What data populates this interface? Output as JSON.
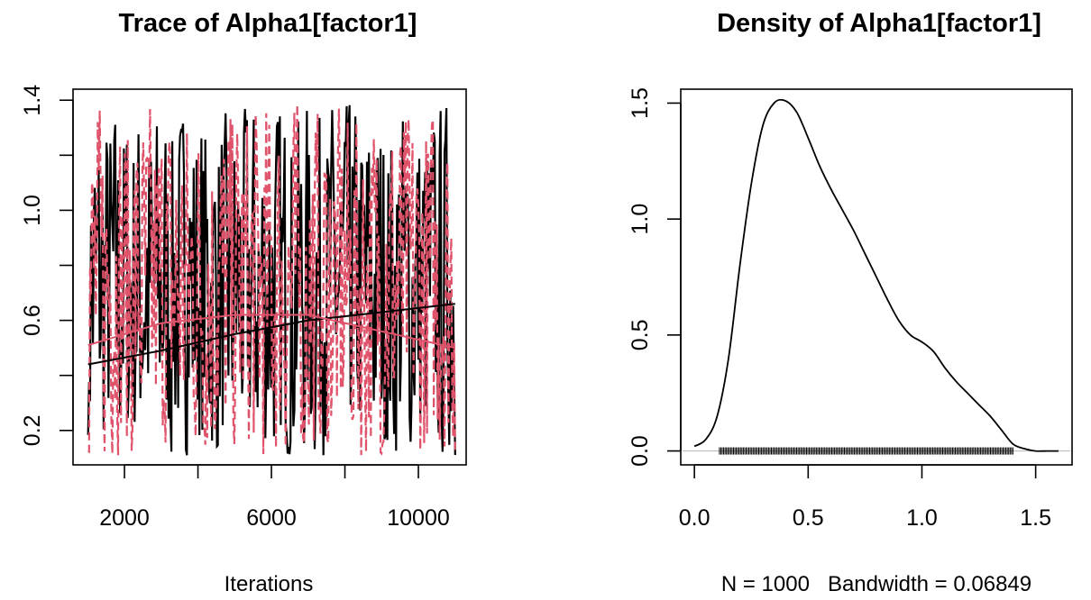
{
  "chart_data": [
    {
      "type": "line",
      "title": "Trace of Alpha1[factor1]",
      "xlabel": "Iterations",
      "ylabel": "",
      "xlim": [
        600,
        11300
      ],
      "ylim": [
        0.075,
        1.44
      ],
      "xticks": [
        2000,
        4000,
        6000,
        8000,
        10000
      ],
      "xtick_labels": [
        "2000",
        "",
        "6000",
        "",
        "10000"
      ],
      "yticks": [
        0.2,
        0.4,
        0.6,
        0.8,
        1.0,
        1.2,
        1.4
      ],
      "ytick_labels": [
        "0.2",
        "",
        "0.6",
        "",
        "1.0",
        "",
        "1.4"
      ],
      "iterations_start": 1010,
      "iterations_end": 11000,
      "series": [
        {
          "color": "#000000",
          "style": "solid"
        },
        {
          "color": "#DF536B",
          "style": "dashed"
        }
      ],
      "smooth_lines": [
        {
          "color": "#000000",
          "x": [
            1010,
            3000,
            5000,
            7000,
            9000,
            11000
          ],
          "y": [
            0.44,
            0.49,
            0.55,
            0.6,
            0.63,
            0.66
          ]
        },
        {
          "color": "#DF536B",
          "x": [
            1010,
            3000,
            5000,
            7000,
            9000,
            11000
          ],
          "y": [
            0.51,
            0.59,
            0.62,
            0.62,
            0.56,
            0.5
          ]
        }
      ]
    },
    {
      "type": "line",
      "title": "Density of Alpha1[factor1]",
      "xlabel": "N = 1000   Bandwidth = 0.06849",
      "ylabel": "",
      "xlim": [
        -0.06,
        1.66
      ],
      "ylim": [
        -0.06,
        1.56
      ],
      "xticks": [
        0.0,
        0.5,
        1.0,
        1.5
      ],
      "xtick_labels": [
        "0.0",
        "0.5",
        "1.0",
        "1.5"
      ],
      "yticks": [
        0.0,
        0.5,
        1.0,
        1.5
      ],
      "ytick_labels": [
        "0.0",
        "0.5",
        "1.0",
        "1.5"
      ],
      "x": [
        0.0,
        0.05,
        0.1,
        0.15,
        0.2,
        0.25,
        0.3,
        0.35,
        0.4,
        0.45,
        0.5,
        0.55,
        0.6,
        0.65,
        0.7,
        0.75,
        0.8,
        0.85,
        0.9,
        0.95,
        1.0,
        1.05,
        1.1,
        1.15,
        1.2,
        1.25,
        1.3,
        1.35,
        1.4,
        1.45,
        1.5,
        1.55,
        1.6
      ],
      "y": [
        0.02,
        0.05,
        0.15,
        0.4,
        0.8,
        1.15,
        1.4,
        1.5,
        1.51,
        1.46,
        1.35,
        1.23,
        1.13,
        1.04,
        0.95,
        0.85,
        0.75,
        0.65,
        0.56,
        0.5,
        0.47,
        0.43,
        0.36,
        0.3,
        0.25,
        0.2,
        0.15,
        0.09,
        0.03,
        0.01,
        0.0,
        0.0,
        0.0
      ],
      "rug": {
        "from": 0.11,
        "to": 1.4,
        "count": 210
      }
    }
  ]
}
